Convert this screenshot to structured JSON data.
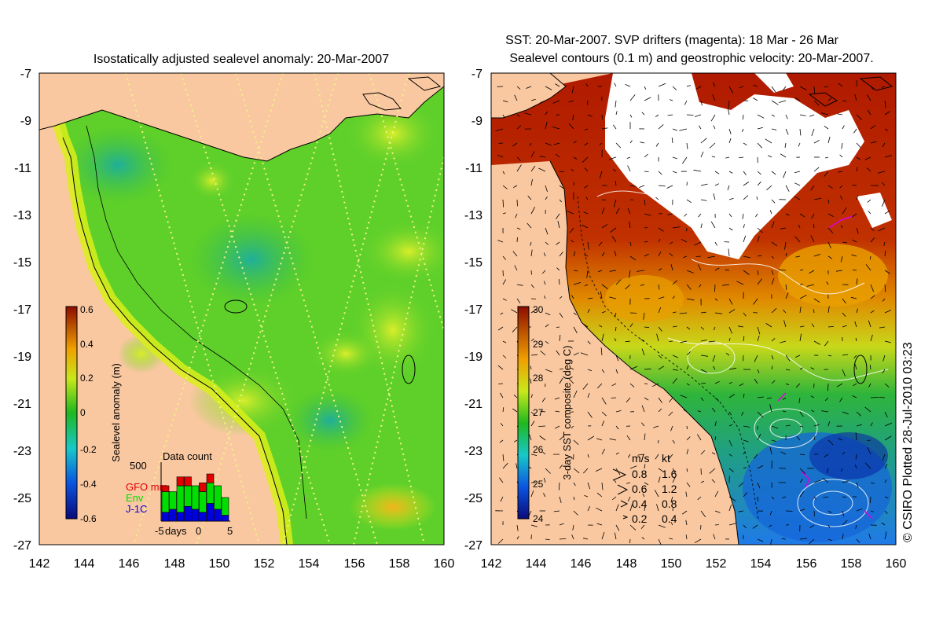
{
  "left_panel": {
    "title": "Isostatically adjusted sealevel anomaly: 20-Mar-2007",
    "colorbar": {
      "label": "Sealevel anomaly (m)",
      "ticks": [
        "0.6",
        "0.4",
        "0.2",
        "0",
        "-0.2",
        "-0.4",
        "-0.6"
      ]
    },
    "inset": {
      "title": "Data count",
      "ymax": "500",
      "legend": [
        {
          "label": "GFO mm",
          "color": "#e00000"
        },
        {
          "label": "Env",
          "color": "#00dd00"
        },
        {
          "label": "J-1C",
          "color": "#0000dd"
        }
      ],
      "xlabels": [
        "-5",
        "days",
        "0",
        "5"
      ],
      "bars": [
        {
          "blue": 0.15,
          "green": 0.35,
          "red": 0.1
        },
        {
          "blue": 0.2,
          "green": 0.3,
          "red": 0.0
        },
        {
          "blue": 0.15,
          "green": 0.45,
          "red": 0.15
        },
        {
          "blue": 0.25,
          "green": 0.35,
          "red": 0.15
        },
        {
          "blue": 0.2,
          "green": 0.4,
          "red": 0.0
        },
        {
          "blue": 0.15,
          "green": 0.35,
          "red": 0.15
        },
        {
          "blue": 0.3,
          "green": 0.35,
          "red": 0.15
        },
        {
          "blue": 0.2,
          "green": 0.4,
          "red": 0.0
        },
        {
          "blue": 0.1,
          "green": 0.3,
          "red": 0.0
        }
      ]
    }
  },
  "right_panel": {
    "title_line1": "SST: 20-Mar-2007. SVP drifters (magenta): 18 Mar - 26 Mar",
    "title_line2": "Sealevel contours (0.1 m) and geostrophic velocity: 20-Mar-2007.",
    "colorbar": {
      "label": "3-day SST composite (deg C)",
      "ticks": [
        "30",
        "29",
        "28",
        "27",
        "26",
        "25",
        "24"
      ]
    },
    "speed_legend": {
      "header_ms": "m/s",
      "header_kt": "kt",
      "rows": [
        {
          "ms": "0.8",
          "kt": "1.6"
        },
        {
          "ms": "0.6",
          "kt": "1.2"
        },
        {
          "ms": "0.4",
          "kt": "0.8"
        },
        {
          "ms": "0.2",
          "kt": "0.4"
        }
      ]
    }
  },
  "axes": {
    "lat_ticks": [
      "-7",
      "-9",
      "-11",
      "-13",
      "-15",
      "-17",
      "-19",
      "-21",
      "-23",
      "-25",
      "-27"
    ],
    "lon_ticks": [
      "142",
      "144",
      "146",
      "148",
      "150",
      "152",
      "154",
      "156",
      "158",
      "160"
    ]
  },
  "credit": "© CSIRO Plotted 28-Jul-2010 03:23",
  "colors": {
    "land": "#fac8a0",
    "ocean_green": "#5fd02a",
    "sst_warm": "#b01a00",
    "sst_cool": "#1f7ae8"
  }
}
